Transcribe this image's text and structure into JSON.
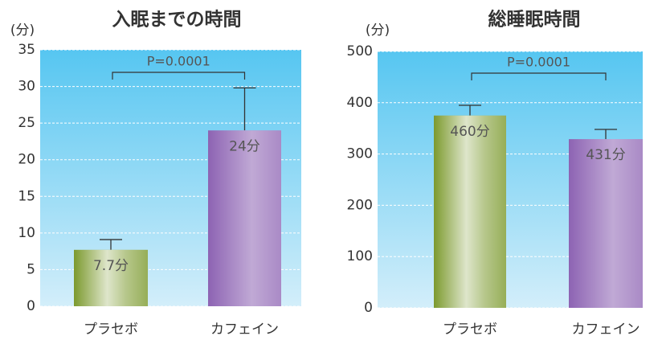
{
  "chart_data": [
    {
      "type": "bar",
      "title": "入眠までの時間",
      "y_label": "(分)",
      "categories": [
        "プラセボ",
        "カフェイン"
      ],
      "values": [
        7.7,
        24
      ],
      "errors": [
        1.4,
        5.8
      ],
      "value_labels": [
        "7.7分",
        "24分"
      ],
      "colors": [
        "#7c9a2e",
        "#8d63b3"
      ],
      "ylim": [
        0,
        35
      ],
      "yticks": [
        0,
        5,
        10,
        15,
        20,
        25,
        30,
        35
      ],
      "grid": true,
      "significance": "P=0.0001"
    },
    {
      "type": "bar",
      "title": "総睡眠時間",
      "y_label": "(分)",
      "categories": [
        "プラセボ",
        "カフェイン"
      ],
      "values": [
        375,
        329
      ],
      "errors": [
        20,
        19
      ],
      "annotations": [
        "460分",
        "431分"
      ],
      "colors": [
        "#7c9a2e",
        "#8d63b3"
      ],
      "ylim": [
        0,
        500
      ],
      "yticks": [
        0,
        100,
        200,
        300,
        400,
        500
      ],
      "grid": true,
      "significance": "P=0.0001"
    }
  ]
}
